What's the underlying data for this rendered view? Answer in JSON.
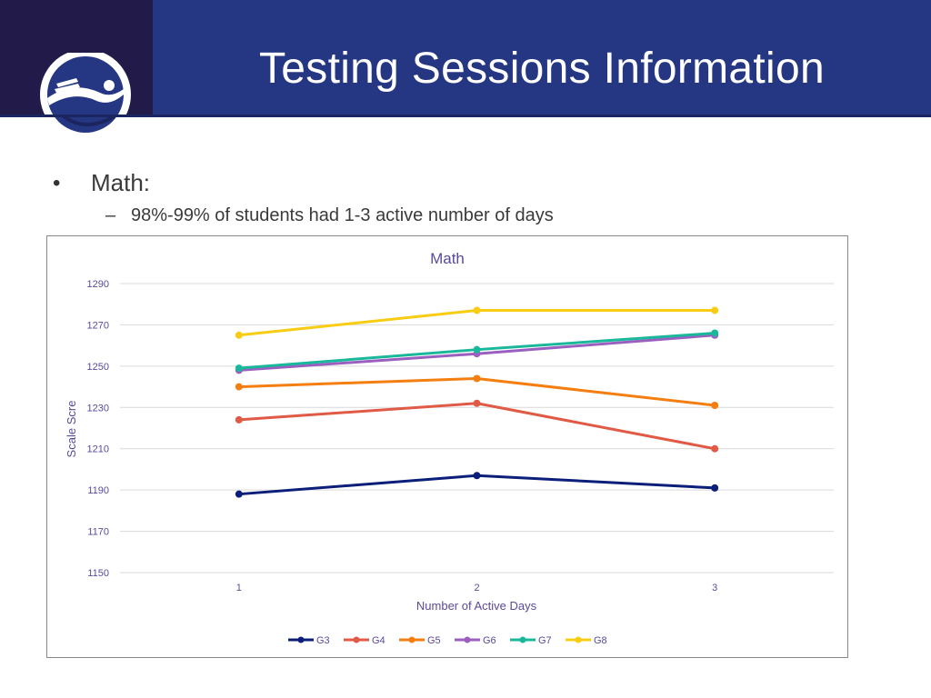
{
  "header": {
    "title": "Testing Sessions Information"
  },
  "bullets": {
    "main": "Math:",
    "sub": "98%-99% of students had 1-3 active number of days"
  },
  "colors": {
    "header_bg": "#253682",
    "logo_panel_bg": "#221a48"
  },
  "chart_data": {
    "type": "line",
    "title": "Math",
    "xlabel": "Number of Active Days",
    "ylabel": "Scale Scre",
    "x": [
      1,
      2,
      3
    ],
    "ylim": [
      1150,
      1290
    ],
    "yticks": [
      1150,
      1170,
      1190,
      1210,
      1230,
      1250,
      1270,
      1290
    ],
    "grid": true,
    "legend_position": "bottom",
    "series": [
      {
        "name": "G3",
        "color": "#0b1f7a",
        "values": [
          1188,
          1197,
          1191
        ]
      },
      {
        "name": "G4",
        "color": "#e05a45",
        "values": [
          1224,
          1232,
          1210
        ]
      },
      {
        "name": "G5",
        "color": "#f47e10",
        "values": [
          1240,
          1244,
          1231
        ]
      },
      {
        "name": "G6",
        "color": "#9b5fc0",
        "values": [
          1248,
          1256,
          1265
        ]
      },
      {
        "name": "G7",
        "color": "#1ab89a",
        "values": [
          1249,
          1258,
          1266
        ]
      },
      {
        "name": "G8",
        "color": "#f9cc14",
        "values": [
          1265,
          1277,
          1277
        ]
      }
    ]
  }
}
